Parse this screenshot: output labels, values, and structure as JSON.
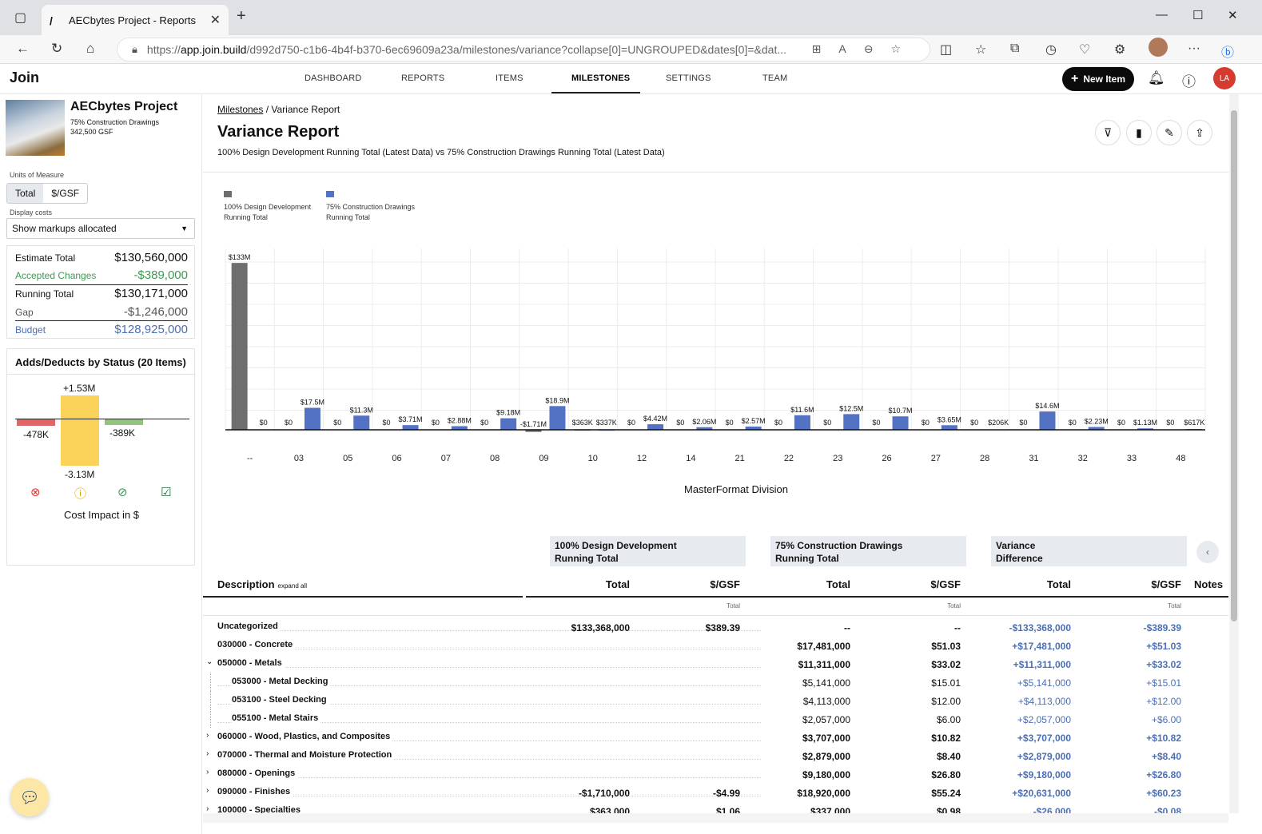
{
  "browser": {
    "tab_title": "AECbytes Project - Reports",
    "url_scheme": "https://",
    "url_host": "app.join.build",
    "url_path": "/d992d750-c1b6-4b4f-b370-6ec69609a23a/milestones/variance?collapse[0]=UNGROUPED&dates[0]=&dat..."
  },
  "app": {
    "logo": "Join",
    "nav": [
      "DASHBOARD",
      "REPORTS",
      "ITEMS",
      "MILESTONES",
      "SETTINGS",
      "TEAM"
    ],
    "active_nav": "MILESTONES",
    "new_item": "New Item",
    "user_initials": "LA"
  },
  "sidebar": {
    "project_name": "AECbytes Project",
    "milestone": "75% Construction Drawings",
    "gsf": "342,500 GSF",
    "units_label": "Units of Measure",
    "units_options": [
      "Total",
      "$/GSF"
    ],
    "display_costs_label": "Display costs",
    "display_costs_value": "Show markups allocated",
    "summary": [
      {
        "label": "Estimate Total",
        "value": "$130,560,000"
      },
      {
        "label": "Accepted Changes",
        "value": "-$389,000"
      },
      {
        "label": "Running Total",
        "value": "$130,171,000"
      },
      {
        "label": "Gap",
        "value": "-$1,246,000"
      },
      {
        "label": "Budget",
        "value": "$128,925,000"
      }
    ],
    "adds_deducts": {
      "title": "Adds/Deducts by Status (20 Items)",
      "labels": {
        "neg_rejected": "-478K",
        "pos_pending": "+1.53M",
        "neg_pending": "-3.13M",
        "neg_accepted": "-389K"
      },
      "values": {
        "rejected": -478000,
        "pending_add": 1530000,
        "pending_deduct": -3130000,
        "accepted": -389000
      },
      "footer": "Cost Impact in $",
      "status_icons": [
        "rejected-icon",
        "pending-icon",
        "accepted-icon",
        "incorporated-icon"
      ],
      "colors": {
        "rejected": "#e06666",
        "pending": "#fbd35a",
        "accepted": "#93c47d"
      }
    }
  },
  "report": {
    "breadcrumb_link": "Milestones",
    "breadcrumb_sep": "/",
    "breadcrumb_current": "Variance Report",
    "title": "Variance Report",
    "subtitle": "100% Design Development Running Total (Latest Data) vs 75% Construction Drawings Running Total (Latest Data)",
    "legend": [
      {
        "line1": "100% Design Development",
        "line2": "Running Total",
        "color": "#6e6e6e"
      },
      {
        "line1": "75% Construction Drawings",
        "line2": "Running Total",
        "color": "#5472c4"
      }
    ],
    "table": {
      "groups": [
        {
          "line1": "100% Design Development",
          "line2": "Running Total"
        },
        {
          "line1": "75% Construction Drawings",
          "line2": "Running Total"
        },
        {
          "line1": "Variance",
          "line2": "Difference"
        }
      ],
      "col_description": "Description",
      "expand_all": "expand all",
      "col_total": "Total",
      "col_gsf": "$/GSF",
      "col_notes": "Notes",
      "sub_total": "Total",
      "rows": [
        {
          "desc": "Uncategorized",
          "lvl": 0,
          "chev": "",
          "dd_total": "$133,368,000",
          "dd_gsf": "$389.39",
          "cd_total": "--",
          "cd_gsf": "--",
          "var_total": "-$133,368,000",
          "var_gsf": "-$389.39"
        },
        {
          "desc": "030000 - Concrete",
          "lvl": 0,
          "chev": "",
          "dd_total": "",
          "dd_gsf": "",
          "cd_total": "$17,481,000",
          "cd_gsf": "$51.03",
          "var_total": "+$17,481,000",
          "var_gsf": "+$51.03"
        },
        {
          "desc": "050000 - Metals",
          "lvl": 0,
          "chev": "⌄",
          "dd_total": "",
          "dd_gsf": "",
          "cd_total": "$11,311,000",
          "cd_gsf": "$33.02",
          "var_total": "+$11,311,000",
          "var_gsf": "+$33.02"
        },
        {
          "desc": "053000 - Metal Decking",
          "lvl": 1,
          "chev": "",
          "dd_total": "",
          "dd_gsf": "",
          "cd_total": "$5,141,000",
          "cd_gsf": "$15.01",
          "var_total": "+$5,141,000",
          "var_gsf": "+$15.01"
        },
        {
          "desc": "053100 - Steel Decking",
          "lvl": 1,
          "chev": "",
          "dd_total": "",
          "dd_gsf": "",
          "cd_total": "$4,113,000",
          "cd_gsf": "$12.00",
          "var_total": "+$4,113,000",
          "var_gsf": "+$12.00"
        },
        {
          "desc": "055100 - Metal Stairs",
          "lvl": 1,
          "chev": "",
          "dd_total": "",
          "dd_gsf": "",
          "cd_total": "$2,057,000",
          "cd_gsf": "$6.00",
          "var_total": "+$2,057,000",
          "var_gsf": "+$6.00"
        },
        {
          "desc": "060000 - Wood, Plastics, and Composites",
          "lvl": 0,
          "chev": "›",
          "dd_total": "",
          "dd_gsf": "",
          "cd_total": "$3,707,000",
          "cd_gsf": "$10.82",
          "var_total": "+$3,707,000",
          "var_gsf": "+$10.82"
        },
        {
          "desc": "070000 - Thermal and Moisture Protection",
          "lvl": 0,
          "chev": "›",
          "dd_total": "",
          "dd_gsf": "",
          "cd_total": "$2,879,000",
          "cd_gsf": "$8.40",
          "var_total": "+$2,879,000",
          "var_gsf": "+$8.40"
        },
        {
          "desc": "080000 - Openings",
          "lvl": 0,
          "chev": "›",
          "dd_total": "",
          "dd_gsf": "",
          "cd_total": "$9,180,000",
          "cd_gsf": "$26.80",
          "var_total": "+$9,180,000",
          "var_gsf": "+$26.80"
        },
        {
          "desc": "090000 - Finishes",
          "lvl": 0,
          "chev": "›",
          "dd_total": "-$1,710,000",
          "dd_gsf": "-$4.99",
          "cd_total": "$18,920,000",
          "cd_gsf": "$55.24",
          "var_total": "+$20,631,000",
          "var_gsf": "+$60.23"
        },
        {
          "desc": "100000 - Specialties",
          "lvl": 0,
          "chev": "›",
          "dd_total": "$363,000",
          "dd_gsf": "$1.06",
          "cd_total": "$337,000",
          "cd_gsf": "$0.98",
          "var_total": "-$26,000",
          "var_gsf": "-$0.08"
        }
      ]
    }
  },
  "chart_data": {
    "type": "bar",
    "xlabel": "MasterFormat Division",
    "ylabel": "",
    "grid": true,
    "legend_position": "top-left",
    "categories": [
      "--",
      "03",
      "05",
      "06",
      "07",
      "08",
      "09",
      "10",
      "12",
      "14",
      "21",
      "22",
      "23",
      "26",
      "27",
      "28",
      "31",
      "32",
      "33",
      "48"
    ],
    "series": [
      {
        "name": "100% Design Development Running Total",
        "color": "#6e6e6e",
        "values": [
          133,
          0,
          0,
          0,
          0,
          0,
          -1.71,
          0.363,
          0,
          0,
          0,
          0,
          0,
          0,
          0,
          0,
          0,
          0,
          0,
          0
        ],
        "labels": [
          "$133M",
          "$0",
          "$0",
          "$0",
          "$0",
          "$0",
          "-$1.71M",
          "$363K",
          "$0",
          "$0",
          "$0",
          "$0",
          "$0",
          "$0",
          "$0",
          "$0",
          "$0",
          "$0",
          "$0",
          "$0"
        ]
      },
      {
        "name": "75% Construction Drawings Running Total",
        "color": "#5472c4",
        "values": [
          0,
          17.5,
          11.3,
          3.71,
          2.88,
          9.18,
          18.9,
          0.337,
          4.42,
          2.06,
          2.57,
          11.6,
          12.5,
          10.7,
          3.65,
          0.206,
          14.6,
          2.23,
          1.13,
          0.617
        ],
        "labels": [
          "$0",
          "$17.5M",
          "$11.3M",
          "$3.71M",
          "$2.88M",
          "$9.18M",
          "$18.9M",
          "$337K",
          "$4.42M",
          "$2.06M",
          "$2.57M",
          "$11.6M",
          "$12.5M",
          "$10.7M",
          "$3.65M",
          "$206K",
          "$14.6M",
          "$2.23M",
          "$1.13M",
          "$617K"
        ]
      }
    ],
    "ylim": [
      -3,
      135
    ]
  }
}
